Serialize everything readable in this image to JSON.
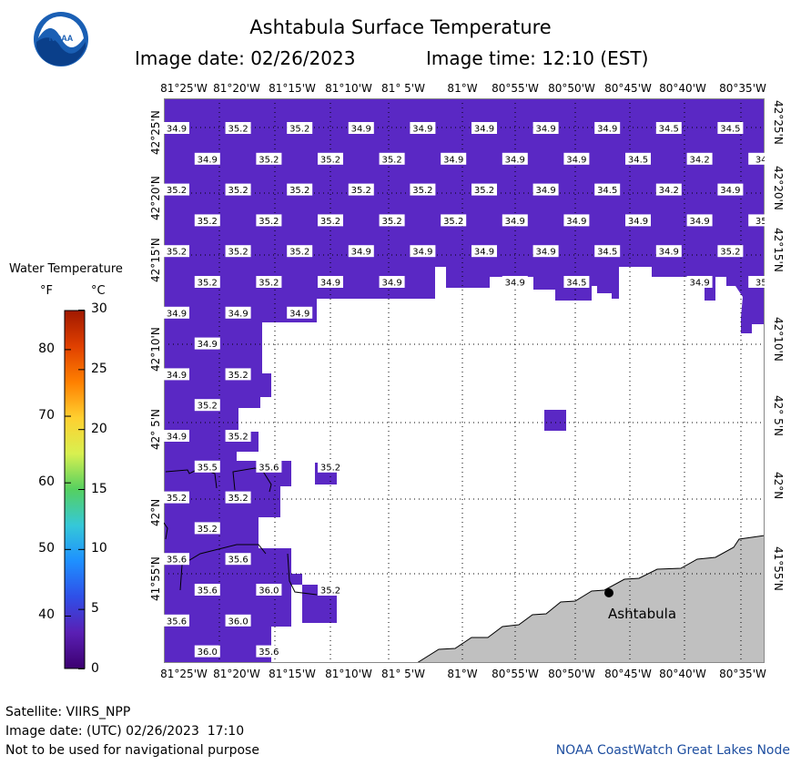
{
  "header": {
    "title": "Ashtabula Surface Temperature",
    "image_date": "Image date: 02/26/2023",
    "image_time": "Image time: 12:10 (EST)",
    "logo_text": "NOAA"
  },
  "map": {
    "lon_labels": [
      "81°25'W",
      "81°20'W",
      "81°15'W",
      "81°10'W",
      "81° 5'W",
      "81°W",
      "80°55'W",
      "80°50'W",
      "80°45'W",
      "80°40'W",
      "80°35'W"
    ],
    "lat_labels": [
      "42°25'N",
      "42°20'N",
      "42°15'N",
      "42°10'N",
      "42° 5'N",
      "42°N",
      "41°55'N"
    ],
    "city": "Ashtabula",
    "water_color": "#5a28c4",
    "land_color": "#c0c0c0",
    "temps": [
      {
        "v": "34.9",
        "c": 0,
        "r": 0
      },
      {
        "v": "35.2",
        "c": 2,
        "r": 0
      },
      {
        "v": "35.2",
        "c": 4,
        "r": 0
      },
      {
        "v": "34.9",
        "c": 6,
        "r": 0
      },
      {
        "v": "34.9",
        "c": 8,
        "r": 0
      },
      {
        "v": "34.9",
        "c": 10,
        "r": 0
      },
      {
        "v": "34.9",
        "c": 12,
        "r": 0
      },
      {
        "v": "34.9",
        "c": 14,
        "r": 0
      },
      {
        "v": "34.5",
        "c": 16,
        "r": 0
      },
      {
        "v": "34.5",
        "c": 18,
        "r": 0
      },
      {
        "v": "34.9",
        "c": 1,
        "r": 1
      },
      {
        "v": "35.2",
        "c": 3,
        "r": 1
      },
      {
        "v": "35.2",
        "c": 5,
        "r": 1
      },
      {
        "v": "35.2",
        "c": 7,
        "r": 1
      },
      {
        "v": "34.9",
        "c": 9,
        "r": 1
      },
      {
        "v": "34.9",
        "c": 11,
        "r": 1
      },
      {
        "v": "34.9",
        "c": 13,
        "r": 1
      },
      {
        "v": "34.5",
        "c": 15,
        "r": 1
      },
      {
        "v": "34.2",
        "c": 17,
        "r": 1
      },
      {
        "v": "34",
        "c": 19,
        "r": 1
      },
      {
        "v": "35.2",
        "c": 0,
        "r": 2
      },
      {
        "v": "35.2",
        "c": 2,
        "r": 2
      },
      {
        "v": "35.2",
        "c": 4,
        "r": 2
      },
      {
        "v": "35.2",
        "c": 6,
        "r": 2
      },
      {
        "v": "35.2",
        "c": 8,
        "r": 2
      },
      {
        "v": "35.2",
        "c": 10,
        "r": 2
      },
      {
        "v": "34.9",
        "c": 12,
        "r": 2
      },
      {
        "v": "34.5",
        "c": 14,
        "r": 2
      },
      {
        "v": "34.2",
        "c": 16,
        "r": 2
      },
      {
        "v": "34.9",
        "c": 18,
        "r": 2
      },
      {
        "v": "35.2",
        "c": 1,
        "r": 3
      },
      {
        "v": "35.2",
        "c": 3,
        "r": 3
      },
      {
        "v": "35.2",
        "c": 5,
        "r": 3
      },
      {
        "v": "35.2",
        "c": 7,
        "r": 3
      },
      {
        "v": "35.2",
        "c": 9,
        "r": 3
      },
      {
        "v": "34.9",
        "c": 11,
        "r": 3
      },
      {
        "v": "34.9",
        "c": 13,
        "r": 3
      },
      {
        "v": "34.9",
        "c": 15,
        "r": 3
      },
      {
        "v": "34.9",
        "c": 17,
        "r": 3
      },
      {
        "v": "35",
        "c": 19,
        "r": 3
      },
      {
        "v": "35.2",
        "c": 0,
        "r": 4
      },
      {
        "v": "35.2",
        "c": 2,
        "r": 4
      },
      {
        "v": "35.2",
        "c": 4,
        "r": 4
      },
      {
        "v": "34.9",
        "c": 6,
        "r": 4
      },
      {
        "v": "34.9",
        "c": 8,
        "r": 4
      },
      {
        "v": "34.9",
        "c": 10,
        "r": 4
      },
      {
        "v": "34.9",
        "c": 12,
        "r": 4
      },
      {
        "v": "34.5",
        "c": 14,
        "r": 4
      },
      {
        "v": "34.9",
        "c": 16,
        "r": 4
      },
      {
        "v": "35.2",
        "c": 18,
        "r": 4
      },
      {
        "v": "35.2",
        "c": 1,
        "r": 5
      },
      {
        "v": "35.2",
        "c": 3,
        "r": 5
      },
      {
        "v": "34.9",
        "c": 5,
        "r": 5
      },
      {
        "v": "34.9",
        "c": 7,
        "r": 5
      },
      {
        "v": "34.9",
        "c": 11,
        "r": 5
      },
      {
        "v": "34.5",
        "c": 13,
        "r": 5
      },
      {
        "v": "34.9",
        "c": 17,
        "r": 5
      },
      {
        "v": "35",
        "c": 19,
        "r": 5
      },
      {
        "v": "34.9",
        "c": 0,
        "r": 6
      },
      {
        "v": "34.9",
        "c": 2,
        "r": 6
      },
      {
        "v": "34.9",
        "c": 4,
        "r": 6
      },
      {
        "v": "34.9",
        "c": 1,
        "r": 7
      },
      {
        "v": "34.9",
        "c": 0,
        "r": 8
      },
      {
        "v": "35.2",
        "c": 2,
        "r": 8
      },
      {
        "v": "35.2",
        "c": 1,
        "r": 9
      },
      {
        "v": "34.9",
        "c": 0,
        "r": 10
      },
      {
        "v": "35.2",
        "c": 2,
        "r": 10
      },
      {
        "v": "35.5",
        "c": 1,
        "r": 11
      },
      {
        "v": "35.6",
        "c": 3,
        "r": 11
      },
      {
        "v": "35.2",
        "c": 5,
        "r": 11
      },
      {
        "v": "35.2",
        "c": 0,
        "r": 12
      },
      {
        "v": "35.2",
        "c": 2,
        "r": 12
      },
      {
        "v": "35.2",
        "c": 1,
        "r": 13
      },
      {
        "v": "35.6",
        "c": 0,
        "r": 14
      },
      {
        "v": "35.6",
        "c": 2,
        "r": 14
      },
      {
        "v": "35.6",
        "c": 1,
        "r": 15
      },
      {
        "v": "36.0",
        "c": 3,
        "r": 15
      },
      {
        "v": "35.2",
        "c": 5,
        "r": 15
      },
      {
        "v": "35.6",
        "c": 0,
        "r": 16
      },
      {
        "v": "36.0",
        "c": 2,
        "r": 16
      },
      {
        "v": "36.0",
        "c": 1,
        "r": 17
      },
      {
        "v": "35.6",
        "c": 3,
        "r": 17
      }
    ]
  },
  "legend": {
    "title": "Water Temperature",
    "unit_f": "°F",
    "unit_c": "°C",
    "f_ticks": [
      "80",
      "70",
      "60",
      "50",
      "40"
    ],
    "c_ticks": [
      "30",
      "25",
      "20",
      "15",
      "10",
      "5",
      "0"
    ],
    "f_values": [
      80,
      70,
      60,
      50,
      40
    ],
    "c_values": [
      30,
      25,
      20,
      15,
      10,
      5,
      0
    ],
    "range_c": [
      0,
      30
    ],
    "colors": [
      "#3c0070",
      "#5a1fb4",
      "#2f4fe8",
      "#1e90ff",
      "#35c8d8",
      "#55d060",
      "#d8f050",
      "#ffd030",
      "#ff8000",
      "#e04000",
      "#a01800"
    ]
  },
  "footer": {
    "satellite": "Satellite: VIIRS_NPP",
    "utc_date": "Image date: (UTC) 02/26/2023  17:10",
    "disclaimer": "Not to be used for navigational purpose",
    "credit": "NOAA CoastWatch Great Lakes Node"
  }
}
